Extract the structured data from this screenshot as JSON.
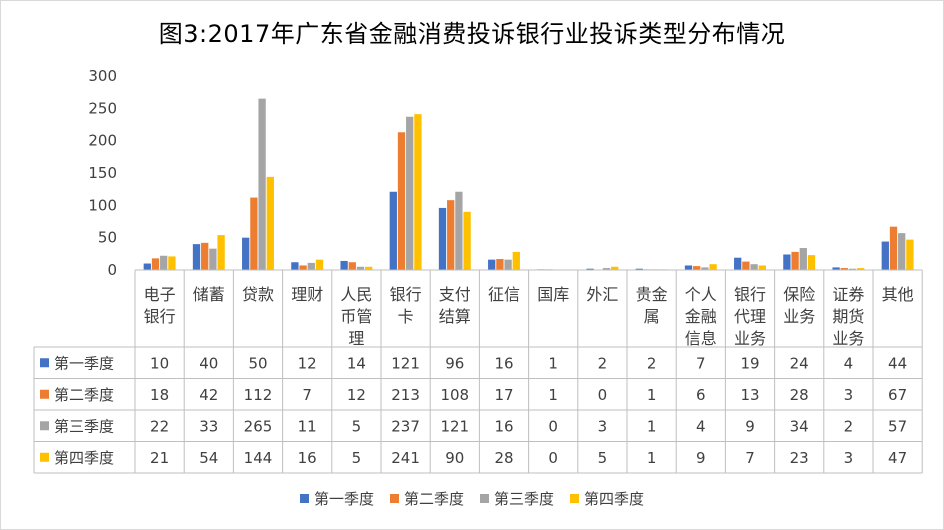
{
  "title": "图3:2017年广东省金融消费投诉银行业投诉类型分布情况",
  "chart_data": {
    "type": "bar",
    "title": "图3:2017年广东省金融消费投诉银行业投诉类型分布情况",
    "xlabel": "",
    "ylabel": "",
    "ylim": [
      0,
      300
    ],
    "yticks": [
      "0",
      "50",
      "100",
      "150",
      "200",
      "250",
      "300"
    ],
    "grid": false,
    "legend": "bottom",
    "categories": [
      "电子银行",
      "储蓄",
      "贷款",
      "理财",
      "人民币管理",
      "银行卡",
      "支付结算",
      "征信",
      "国库",
      "外汇",
      "贵金属",
      "个人金融信息",
      "银行代理业务",
      "保险业务",
      "证券期货业务",
      "其他"
    ],
    "category_lines": [
      [
        "电子",
        "银行"
      ],
      [
        "储蓄"
      ],
      [
        "贷款"
      ],
      [
        "理财"
      ],
      [
        "人民",
        "币管",
        "理"
      ],
      [
        "银行",
        "卡"
      ],
      [
        "支付",
        "结算"
      ],
      [
        "征信"
      ],
      [
        "国库"
      ],
      [
        "外汇"
      ],
      [
        "贵金",
        "属"
      ],
      [
        "个人",
        "金融",
        "信息"
      ],
      [
        "银行",
        "代理",
        "业务"
      ],
      [
        "保险",
        "业务"
      ],
      [
        "证券",
        "期货",
        "业务"
      ],
      [
        "其他"
      ]
    ],
    "series": [
      {
        "name": "第一季度",
        "color": "#4472c4",
        "values": [
          10,
          40,
          50,
          12,
          14,
          121,
          96,
          16,
          1,
          2,
          2,
          7,
          19,
          24,
          4,
          44
        ]
      },
      {
        "name": "第二季度",
        "color": "#ed7d31",
        "values": [
          18,
          42,
          112,
          7,
          12,
          213,
          108,
          17,
          1,
          0,
          1,
          6,
          13,
          28,
          3,
          67
        ]
      },
      {
        "name": "第三季度",
        "color": "#a5a5a5",
        "values": [
          22,
          33,
          265,
          11,
          5,
          237,
          121,
          16,
          0,
          3,
          1,
          4,
          9,
          34,
          2,
          57
        ]
      },
      {
        "name": "第四季度",
        "color": "#ffc000",
        "values": [
          21,
          54,
          144,
          16,
          5,
          241,
          90,
          28,
          0,
          5,
          1,
          9,
          7,
          23,
          3,
          47
        ]
      }
    ]
  }
}
